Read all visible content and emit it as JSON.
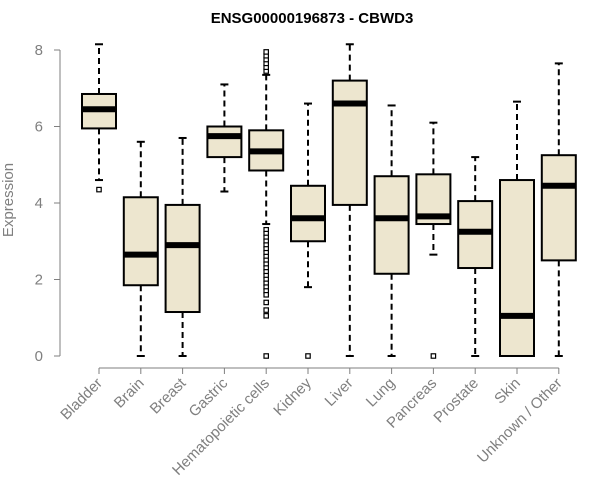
{
  "chart_data": {
    "type": "boxplot",
    "title": "ENSG00000196873 - CBWD3",
    "xlabel": "",
    "ylabel": "Expression",
    "ylim": [
      0,
      8
    ],
    "yticks": [
      0,
      2,
      4,
      6,
      8
    ],
    "grid": false,
    "colors": {
      "box_fill": "#ede6cf",
      "stroke": "#000000",
      "axis": "#7f7f7f"
    },
    "categories": [
      "Bladder",
      "Brain",
      "Breast",
      "Gastric",
      "Hematopoietic cells",
      "Kidney",
      "Liver",
      "Lung",
      "Pancreas",
      "Prostate",
      "Skin",
      "Unknown / Other"
    ],
    "boxes": [
      {
        "category": "Bladder",
        "whisker_low": 4.6,
        "q1": 5.95,
        "median": 6.45,
        "q3": 6.85,
        "whisker_high": 8.15,
        "outliers": [
          4.35
        ]
      },
      {
        "category": "Brain",
        "whisker_low": 0.0,
        "q1": 1.85,
        "median": 2.65,
        "q3": 4.15,
        "whisker_high": 5.6,
        "outliers": []
      },
      {
        "category": "Breast",
        "whisker_low": 0.0,
        "q1": 1.15,
        "median": 2.9,
        "q3": 3.95,
        "whisker_high": 5.7,
        "outliers": []
      },
      {
        "category": "Gastric",
        "whisker_low": 4.3,
        "q1": 5.2,
        "median": 5.75,
        "q3": 6.0,
        "whisker_high": 7.1,
        "outliers": []
      },
      {
        "category": "Hematopoietic cells",
        "whisker_low": 3.45,
        "q1": 4.85,
        "median": 5.35,
        "q3": 5.9,
        "whisker_high": 7.35,
        "outliers": [
          7.45,
          7.55,
          7.65,
          7.75,
          7.85,
          7.95,
          3.3,
          3.2,
          3.1,
          3.0,
          2.9,
          2.8,
          2.7,
          2.6,
          2.5,
          2.4,
          2.3,
          2.2,
          2.1,
          2.0,
          1.9,
          1.8,
          1.7,
          1.6,
          1.4,
          1.2,
          1.05,
          0.0
        ]
      },
      {
        "category": "Kidney",
        "whisker_low": 1.8,
        "q1": 3.0,
        "median": 3.6,
        "q3": 4.45,
        "whisker_high": 6.6,
        "outliers": [
          0.0
        ]
      },
      {
        "category": "Liver",
        "whisker_low": 0.0,
        "q1": 3.95,
        "median": 6.6,
        "q3": 7.2,
        "whisker_high": 8.15,
        "outliers": []
      },
      {
        "category": "Lung",
        "whisker_low": 0.0,
        "q1": 2.15,
        "median": 3.6,
        "q3": 4.7,
        "whisker_high": 6.55,
        "outliers": []
      },
      {
        "category": "Pancreas",
        "whisker_low": 2.65,
        "q1": 3.45,
        "median": 3.65,
        "q3": 4.75,
        "whisker_high": 6.1,
        "outliers": [
          0.0
        ]
      },
      {
        "category": "Prostate",
        "whisker_low": 0.0,
        "q1": 2.3,
        "median": 3.25,
        "q3": 4.05,
        "whisker_high": 5.2,
        "outliers": []
      },
      {
        "category": "Skin",
        "whisker_low": 0.0,
        "q1": 0.0,
        "median": 1.05,
        "q3": 4.6,
        "whisker_high": 6.65,
        "outliers": []
      },
      {
        "category": "Unknown / Other",
        "whisker_low": 0.0,
        "q1": 2.5,
        "median": 4.45,
        "q3": 5.25,
        "whisker_high": 7.65,
        "outliers": []
      }
    ]
  }
}
